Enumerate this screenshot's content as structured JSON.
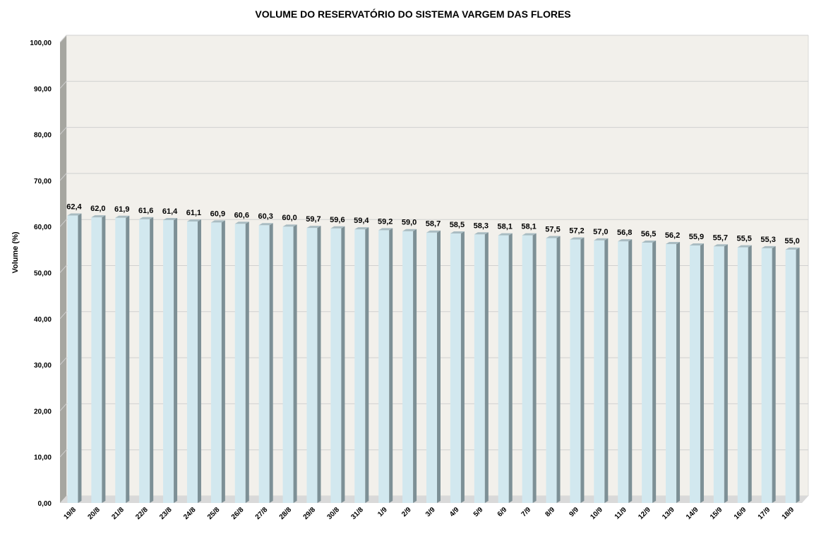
{
  "chart_data": {
    "type": "bar",
    "title": "VOLUME DO RESERVATÓRIO DO SISTEMA VARGEM DAS FLORES",
    "xlabel": "",
    "ylabel": "Volume (%)",
    "ylim": [
      0,
      100
    ],
    "yticks": [
      "0,00",
      "10,00",
      "20,00",
      "30,00",
      "40,00",
      "50,00",
      "60,00",
      "70,00",
      "80,00",
      "90,00",
      "100,00"
    ],
    "grid": true,
    "categories": [
      "19/8",
      "20/8",
      "21/8",
      "22/8",
      "23/8",
      "24/8",
      "25/8",
      "26/8",
      "27/8",
      "28/8",
      "29/8",
      "30/8",
      "31/8",
      "1/9",
      "2/9",
      "3/9",
      "4/9",
      "5/9",
      "6/9",
      "7/9",
      "8/9",
      "9/9",
      "10/9",
      "11/9",
      "12/9",
      "13/9",
      "14/9",
      "15/9",
      "16/9",
      "17/9",
      "18/9"
    ],
    "values": [
      62.4,
      62.0,
      61.9,
      61.6,
      61.4,
      61.1,
      60.9,
      60.6,
      60.3,
      60.0,
      59.7,
      59.6,
      59.4,
      59.2,
      59.0,
      58.7,
      58.5,
      58.3,
      58.1,
      58.1,
      57.5,
      57.2,
      57.0,
      56.8,
      56.5,
      56.2,
      55.9,
      55.7,
      55.5,
      55.3,
      55.0
    ],
    "data_labels": [
      "62,4",
      "62,0",
      "61,9",
      "61,6",
      "61,4",
      "61,1",
      "60,9",
      "60,6",
      "60,3",
      "60,0",
      "59,7",
      "59,6",
      "59,4",
      "59,2",
      "59,0",
      "58,7",
      "58,5",
      "58,3",
      "58,1",
      "58,1",
      "57,5",
      "57,2",
      "57,0",
      "56,8",
      "56,5",
      "56,2",
      "55,9",
      "55,7",
      "55,5",
      "55,3",
      "55,0"
    ],
    "colors": {
      "bar_front": "#d2e8ef",
      "bar_side": "#7d9096",
      "bar_top": "#a9bcc2",
      "plot_back": "#f2f0eb",
      "floor": "#d9d9d9",
      "side_wall": "#a6a6a0",
      "gridline": "#d0d0d0"
    }
  }
}
